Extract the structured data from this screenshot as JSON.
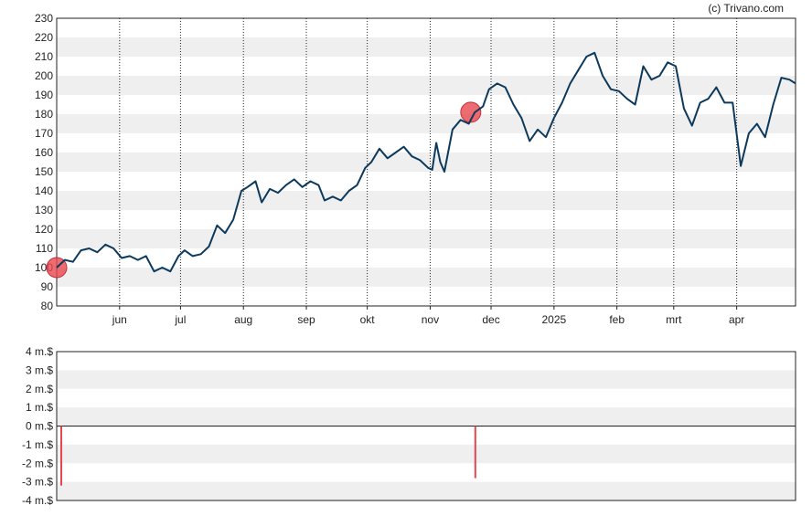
{
  "copyright": "(c) Trivano.com",
  "chart_data": [
    {
      "type": "line",
      "ylim": [
        80,
        230
      ],
      "yticks": [
        80,
        90,
        100,
        110,
        120,
        130,
        140,
        150,
        160,
        170,
        180,
        190,
        200,
        210,
        220,
        230
      ],
      "xlim": [
        "2024-05-01",
        "2025-04-30"
      ],
      "xticks": [
        {
          "label": "jun",
          "date": "2024-06-01"
        },
        {
          "label": "jul",
          "date": "2024-07-01"
        },
        {
          "label": "aug",
          "date": "2024-08-01"
        },
        {
          "label": "sep",
          "date": "2024-09-01"
        },
        {
          "label": "okt",
          "date": "2024-10-01"
        },
        {
          "label": "nov",
          "date": "2024-11-01"
        },
        {
          "label": "dec",
          "date": "2024-12-01"
        },
        {
          "label": "2025",
          "date": "2025-01-01"
        },
        {
          "label": "feb",
          "date": "2025-02-01"
        },
        {
          "label": "mrt",
          "date": "2025-03-01"
        },
        {
          "label": "apr",
          "date": "2025-04-01"
        }
      ],
      "grid": true,
      "line_color": "#0d3a5c",
      "marker_color": "#e8474e",
      "series": [
        {
          "values": [
            [
              "2024-05-01",
              100
            ],
            [
              "2024-05-05",
              104
            ],
            [
              "2024-05-09",
              103
            ],
            [
              "2024-05-13",
              109
            ],
            [
              "2024-05-17",
              110
            ],
            [
              "2024-05-21",
              108
            ],
            [
              "2024-05-25",
              112
            ],
            [
              "2024-05-29",
              110
            ],
            [
              "2024-06-02",
              105
            ],
            [
              "2024-06-06",
              106
            ],
            [
              "2024-06-10",
              104
            ],
            [
              "2024-06-14",
              106
            ],
            [
              "2024-06-18",
              98
            ],
            [
              "2024-06-22",
              100
            ],
            [
              "2024-06-26",
              98
            ],
            [
              "2024-06-30",
              106
            ],
            [
              "2024-07-03",
              109
            ],
            [
              "2024-07-07",
              106
            ],
            [
              "2024-07-11",
              107
            ],
            [
              "2024-07-15",
              111
            ],
            [
              "2024-07-19",
              122
            ],
            [
              "2024-07-23",
              118
            ],
            [
              "2024-07-27",
              125
            ],
            [
              "2024-07-31",
              140
            ],
            [
              "2024-08-03",
              142
            ],
            [
              "2024-08-07",
              145
            ],
            [
              "2024-08-10",
              134
            ],
            [
              "2024-08-14",
              141
            ],
            [
              "2024-08-18",
              139
            ],
            [
              "2024-08-22",
              143
            ],
            [
              "2024-08-26",
              146
            ],
            [
              "2024-08-30",
              142
            ],
            [
              "2024-09-03",
              145
            ],
            [
              "2024-09-07",
              143
            ],
            [
              "2024-09-10",
              135
            ],
            [
              "2024-09-14",
              137
            ],
            [
              "2024-09-18",
              135
            ],
            [
              "2024-09-22",
              140
            ],
            [
              "2024-09-26",
              143
            ],
            [
              "2024-09-30",
              152
            ],
            [
              "2024-10-03",
              155
            ],
            [
              "2024-10-07",
              162
            ],
            [
              "2024-10-11",
              157
            ],
            [
              "2024-10-15",
              160
            ],
            [
              "2024-10-19",
              163
            ],
            [
              "2024-10-23",
              158
            ],
            [
              "2024-10-27",
              156
            ],
            [
              "2024-10-31",
              152
            ],
            [
              "2024-11-02",
              151
            ],
            [
              "2024-11-04",
              165
            ],
            [
              "2024-11-06",
              155
            ],
            [
              "2024-11-08",
              150
            ],
            [
              "2024-11-12",
              172
            ],
            [
              "2024-11-16",
              177
            ],
            [
              "2024-11-20",
              175
            ],
            [
              "2024-11-23",
              181
            ],
            [
              "2024-11-27",
              184
            ],
            [
              "2024-11-30",
              193
            ],
            [
              "2024-12-04",
              196
            ],
            [
              "2024-12-08",
              194
            ],
            [
              "2024-12-12",
              185
            ],
            [
              "2024-12-16",
              178
            ],
            [
              "2024-12-20",
              166
            ],
            [
              "2024-12-24",
              172
            ],
            [
              "2024-12-28",
              168
            ],
            [
              "2025-01-01",
              178
            ],
            [
              "2025-01-05",
              186
            ],
            [
              "2025-01-09",
              196
            ],
            [
              "2025-01-13",
              203
            ],
            [
              "2025-01-17",
              210
            ],
            [
              "2025-01-21",
              212
            ],
            [
              "2025-01-25",
              200
            ],
            [
              "2025-01-29",
              193
            ],
            [
              "2025-02-02",
              192
            ],
            [
              "2025-02-06",
              188
            ],
            [
              "2025-02-10",
              185
            ],
            [
              "2025-02-14",
              205
            ],
            [
              "2025-02-18",
              198
            ],
            [
              "2025-02-22",
              200
            ],
            [
              "2025-02-26",
              207
            ],
            [
              "2025-03-02",
              205
            ],
            [
              "2025-03-06",
              183
            ],
            [
              "2025-03-10",
              174
            ],
            [
              "2025-03-14",
              186
            ],
            [
              "2025-03-18",
              188
            ],
            [
              "2025-03-22",
              194
            ],
            [
              "2025-03-26",
              186
            ],
            [
              "2025-03-30",
              186
            ],
            [
              "2025-04-03",
              153
            ],
            [
              "2025-04-07",
              170
            ],
            [
              "2025-04-11",
              175
            ],
            [
              "2025-04-15",
              168
            ],
            [
              "2025-04-19",
              185
            ],
            [
              "2025-04-23",
              199
            ],
            [
              "2025-04-27",
              198
            ],
            [
              "2025-04-30",
              196
            ]
          ]
        }
      ],
      "markers": [
        {
          "date": "2024-05-01",
          "value": 100
        },
        {
          "date": "2024-11-21",
          "value": 181
        }
      ]
    },
    {
      "type": "bar",
      "ylim": [
        -4,
        4
      ],
      "ytick_labels": [
        {
          "value": 4,
          "label": "4 m.$"
        },
        {
          "value": 3,
          "label": "3 m.$"
        },
        {
          "value": 2,
          "label": "2 m.$"
        },
        {
          "value": 1,
          "label": "1 m.$"
        },
        {
          "value": 0,
          "label": "0 m.$"
        },
        {
          "value": -1,
          "label": "-1 m.$"
        },
        {
          "value": -2,
          "label": "-2 m.$"
        },
        {
          "value": -3,
          "label": "-3 m.$"
        },
        {
          "value": -4,
          "label": "-4 m.$"
        }
      ],
      "grid": true,
      "bar_color": "#e8474e",
      "bars": [
        {
          "date": "2024-05-01",
          "value": -3.2
        },
        {
          "date": "2024-11-21",
          "value": -2.8
        }
      ]
    }
  ]
}
